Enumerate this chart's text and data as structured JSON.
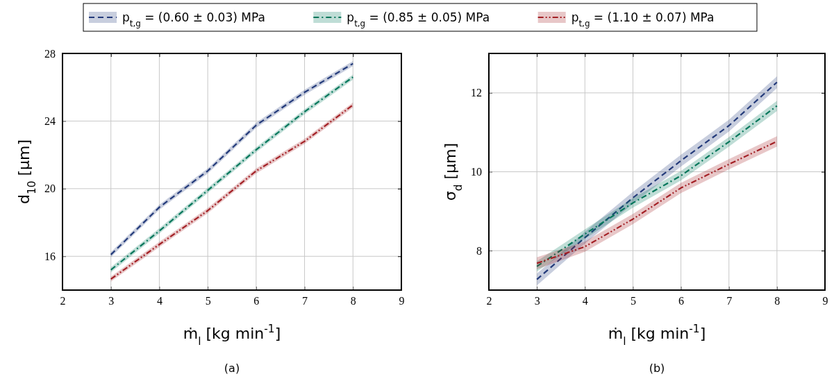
{
  "chart_data": [
    {
      "type": "line",
      "title": "(a)",
      "xlabel": "ṁ$_{l}$ [kg min$^{-1}$]",
      "ylabel": "d$_{10}$ [µm]",
      "x": [
        3,
        4,
        5,
        6,
        7,
        8
      ],
      "xlim": [
        2,
        9
      ],
      "xticks": [
        2,
        3,
        4,
        5,
        6,
        7,
        8,
        9
      ],
      "ylim": [
        14,
        28
      ],
      "yticks": [
        16,
        20,
        24,
        28
      ],
      "grid": true,
      "legend": "top",
      "series": [
        {
          "name": "p$_{t,g}$ = (0.60 ± 0.03) MPa",
          "color": "#233a7a",
          "line_style": "dashed",
          "values": [
            16.1,
            18.9,
            21.05,
            23.75,
            25.7,
            27.4
          ],
          "lower": [
            15.95,
            18.75,
            20.9,
            23.6,
            25.55,
            27.25
          ],
          "upper": [
            16.25,
            19.05,
            21.2,
            23.9,
            25.85,
            27.55
          ]
        },
        {
          "name": "p$_{t,g}$ = (0.85 ± 0.05) MPa",
          "color": "#00765a",
          "line_style": "dashdot",
          "values": [
            15.2,
            17.5,
            19.9,
            22.3,
            24.55,
            26.6
          ],
          "lower": [
            15.05,
            17.35,
            19.75,
            22.15,
            24.4,
            26.45
          ],
          "upper": [
            15.35,
            17.65,
            20.05,
            22.45,
            24.7,
            26.75
          ]
        },
        {
          "name": "p$_{t,g}$ = (1.10 ± 0.07) MPa",
          "color": "#a31f24",
          "line_style": "dashdotdot",
          "values": [
            14.65,
            16.7,
            18.7,
            21.05,
            22.8,
            24.95
          ],
          "lower": [
            14.5,
            16.55,
            18.55,
            20.9,
            22.65,
            24.8
          ],
          "upper": [
            14.8,
            16.85,
            18.85,
            21.2,
            22.95,
            25.1
          ]
        }
      ]
    },
    {
      "type": "line",
      "title": "(b)",
      "xlabel": "ṁ$_{l}$ [kg min$^{-1}$]",
      "ylabel": "σ$_{d}$ [µm]",
      "x": [
        3,
        4,
        5,
        6,
        7,
        8
      ],
      "xlim": [
        2,
        9
      ],
      "xticks": [
        2,
        3,
        4,
        5,
        6,
        7,
        8,
        9
      ],
      "ylim": [
        7,
        13
      ],
      "yticks": [
        8,
        10,
        12
      ],
      "grid": true,
      "series": [
        {
          "color": "#233a7a",
          "line_style": "dashed",
          "values": [
            7.27,
            8.33,
            9.34,
            10.28,
            11.17,
            12.27
          ],
          "lower": [
            7.12,
            8.18,
            9.19,
            10.13,
            11.02,
            12.12
          ],
          "upper": [
            7.42,
            8.48,
            9.49,
            10.43,
            11.32,
            12.42
          ]
        },
        {
          "color": "#00765a",
          "line_style": "dashdot",
          "values": [
            7.6,
            8.42,
            9.21,
            9.9,
            10.76,
            11.67
          ],
          "lower": [
            7.47,
            8.3,
            9.09,
            9.78,
            10.64,
            11.54
          ],
          "upper": [
            7.73,
            8.54,
            9.33,
            10.02,
            10.88,
            11.8
          ]
        },
        {
          "color": "#a31f24",
          "line_style": "dashdotdot",
          "values": [
            7.68,
            8.1,
            8.8,
            9.59,
            10.19,
            10.77
          ],
          "lower": [
            7.53,
            7.97,
            8.67,
            9.46,
            10.06,
            10.64
          ],
          "upper": [
            7.83,
            8.23,
            8.93,
            9.72,
            10.32,
            10.9
          ]
        }
      ]
    }
  ]
}
